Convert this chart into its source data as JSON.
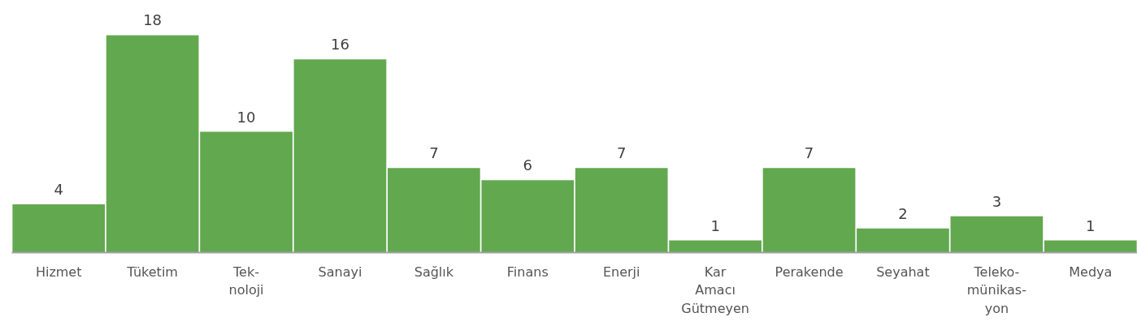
{
  "chart_data": {
    "type": "bar",
    "categories": [
      "Hizmet",
      "Tüketim",
      "Tek-\nnoloji",
      "Sanayi",
      "Sağlık",
      "Finans",
      "Enerji",
      "Kar\nAmacı\nGütmeyen",
      "Perakende",
      "Seyahat",
      "Teleko-\nmünikas-\nyon",
      "Medya"
    ],
    "values": [
      4,
      18,
      10,
      16,
      7,
      6,
      7,
      1,
      7,
      2,
      3,
      1
    ],
    "color": "#62a84f",
    "data_labels": true
  }
}
